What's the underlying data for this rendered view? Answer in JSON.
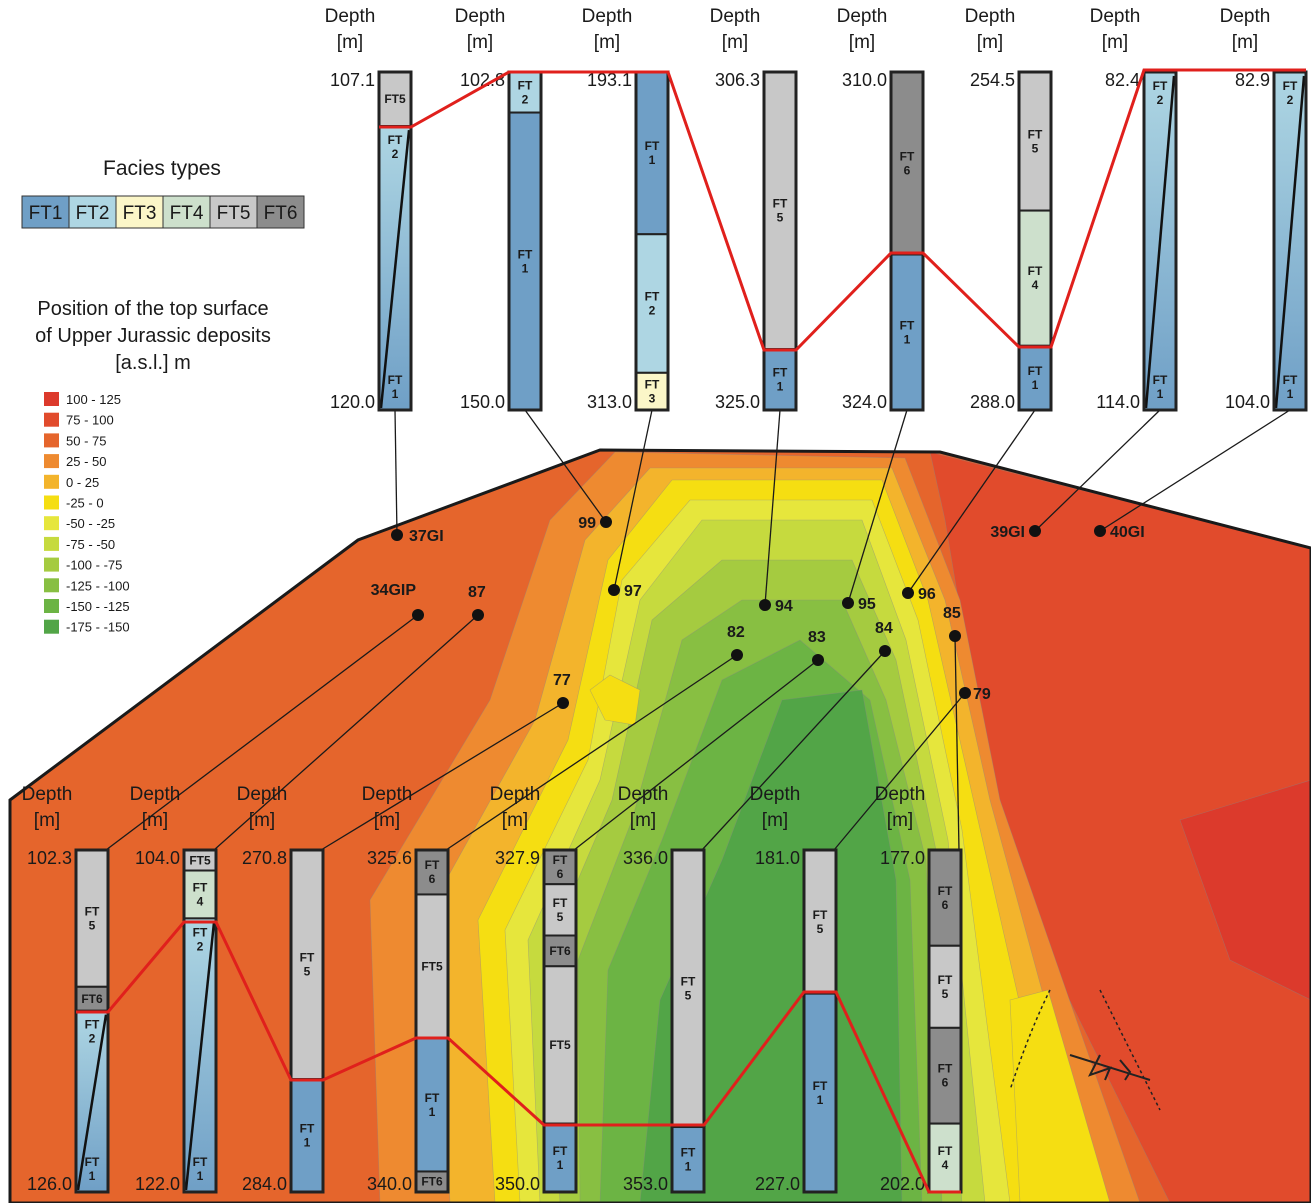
{
  "depth_header": [
    "Depth",
    "[m]"
  ],
  "facies_legend": {
    "title": "Facies types",
    "items": [
      {
        "label": "FT1",
        "color": "#6f9fc6"
      },
      {
        "label": "FT2",
        "color": "#aed6e3"
      },
      {
        "label": "FT3",
        "color": "#fbf6c8"
      },
      {
        "label": "FT4",
        "color": "#cde0cc"
      },
      {
        "label": "FT5",
        "color": "#c8c8c8"
      },
      {
        "label": "FT6",
        "color": "#8c8c8c"
      }
    ]
  },
  "surface_legend": {
    "title": [
      "Position of the top surface",
      "of Upper Jurassic deposits",
      "[a.s.l.] m"
    ],
    "items": [
      {
        "label": "100 - 125",
        "color": "#dc3a2c"
      },
      {
        "label": "75 - 100",
        "color": "#e14b2c"
      },
      {
        "label": "50 - 75",
        "color": "#e5652c"
      },
      {
        "label": "25 - 50",
        "color": "#ee8a30"
      },
      {
        "label": "0 - 25",
        "color": "#f3b42c"
      },
      {
        "label": "-25 - 0",
        "color": "#f5de12"
      },
      {
        "label": "-50 - -25",
        "color": "#e6e63c"
      },
      {
        "label": "-75 - -50",
        "color": "#c6da3e"
      },
      {
        "label": "-100 - -75",
        "color": "#a5cb40"
      },
      {
        "label": "-125 - -100",
        "color": "#88bf42"
      },
      {
        "label": "-150 - -125",
        "color": "#6cb444"
      },
      {
        "label": "-175 - -150",
        "color": "#52a547"
      }
    ]
  },
  "wells": [
    "37GI",
    "99",
    "97",
    "94",
    "95",
    "96",
    "39GI",
    "40GI",
    "34GIP",
    "87",
    "77",
    "82",
    "83",
    "84",
    "79",
    "85"
  ],
  "columns_top": [
    {
      "top": "107.1",
      "bottom": "120.0",
      "segments": [
        {
          "labels": [
            [
              "FT5"
            ]
          ]
        },
        {
          "labels": [
            [
              "FT",
              "2"
            ],
            [
              "FT",
              "1"
            ]
          ]
        }
      ]
    },
    {
      "top": "102.8",
      "bottom": "150.0",
      "segments": [
        {
          "labels": [
            [
              "FT",
              "2"
            ]
          ]
        },
        {
          "labels": [
            [
              "FT",
              "1"
            ]
          ]
        }
      ]
    },
    {
      "top": "193.1",
      "bottom": "313.0",
      "segments": [
        {
          "labels": [
            [
              "FT",
              "1"
            ]
          ]
        },
        {
          "labels": [
            [
              "FT",
              "2"
            ]
          ]
        },
        {
          "labels": [
            [
              "FT",
              "3"
            ]
          ]
        }
      ]
    },
    {
      "top": "306.3",
      "bottom": "325.0",
      "segments": [
        {
          "labels": [
            [
              "FT",
              "5"
            ]
          ]
        },
        {
          "labels": [
            [
              "FT",
              "1"
            ]
          ]
        }
      ]
    },
    {
      "top": "310.0",
      "bottom": "324.0",
      "segments": [
        {
          "labels": [
            [
              "FT",
              "6"
            ]
          ]
        },
        {
          "labels": [
            [
              "FT",
              "1"
            ]
          ]
        }
      ]
    },
    {
      "top": "254.5",
      "bottom": "288.0",
      "segments": [
        {
          "labels": [
            [
              "FT",
              "5"
            ]
          ]
        },
        {
          "labels": [
            [
              "FT",
              "4"
            ]
          ]
        },
        {
          "labels": [
            [
              "FT",
              "1"
            ]
          ]
        }
      ]
    },
    {
      "top": "82.4",
      "bottom": "114.0",
      "segments": [
        {
          "labels": [
            [
              "FT",
              "2"
            ],
            [
              "FT",
              "1"
            ]
          ]
        }
      ]
    },
    {
      "top": "82.9",
      "bottom": "104.0",
      "segments": [
        {
          "labels": [
            [
              "FT",
              "2"
            ],
            [
              "FT",
              "1"
            ]
          ]
        }
      ]
    }
  ],
  "columns_bottom": [
    {
      "top": "102.3",
      "bottom": "126.0",
      "segments": [
        {
          "labels": [
            [
              "FT",
              "5"
            ]
          ]
        },
        {
          "labels": [
            [
              "FT6"
            ]
          ]
        },
        {
          "labels": [
            [
              "FT",
              "2"
            ],
            [
              "FT",
              "1"
            ]
          ]
        }
      ]
    },
    {
      "top": "104.0",
      "bottom": "122.0",
      "segments": [
        {
          "labels": [
            [
              "FT5"
            ]
          ]
        },
        {
          "labels": [
            [
              "FT",
              "4"
            ]
          ]
        },
        {
          "labels": [
            [
              "FT",
              "2"
            ],
            [
              "FT",
              "1"
            ]
          ]
        }
      ]
    },
    {
      "top": "270.8",
      "bottom": "284.0",
      "segments": [
        {
          "labels": [
            [
              "FT",
              "5"
            ]
          ]
        },
        {
          "labels": [
            [
              "FT",
              "1"
            ]
          ]
        }
      ]
    },
    {
      "top": "325.6",
      "bottom": "340.0",
      "segments": [
        {
          "labels": [
            [
              "FT",
              "6"
            ]
          ]
        },
        {
          "labels": [
            [
              "FT5"
            ]
          ]
        },
        {
          "labels": [
            [
              "FT",
              "1"
            ]
          ]
        },
        {
          "labels": [
            [
              "FT6"
            ]
          ]
        }
      ]
    },
    {
      "top": "327.9",
      "bottom": "350.0",
      "segments": [
        {
          "labels": [
            [
              "FT",
              "6"
            ]
          ]
        },
        {
          "labels": [
            [
              "FT",
              "5"
            ]
          ]
        },
        {
          "labels": [
            [
              "FT6"
            ]
          ]
        },
        {
          "labels": [
            [
              "FT5"
            ]
          ]
        },
        {
          "labels": [
            [
              "FT",
              "1"
            ]
          ]
        }
      ]
    },
    {
      "top": "336.0",
      "bottom": "353.0",
      "segments": [
        {
          "labels": [
            [
              "FT",
              "5"
            ]
          ]
        },
        {
          "labels": [
            [
              "FT",
              "1"
            ]
          ]
        }
      ]
    },
    {
      "top": "181.0",
      "bottom": "227.0",
      "segments": [
        {
          "labels": [
            [
              "FT",
              "5"
            ]
          ]
        },
        {
          "labels": [
            [
              "FT",
              "1"
            ]
          ]
        }
      ]
    },
    {
      "top": "177.0",
      "bottom": "202.0",
      "segments": [
        {
          "labels": [
            [
              "FT",
              "6"
            ]
          ]
        },
        {
          "labels": [
            [
              "FT",
              "5"
            ]
          ]
        },
        {
          "labels": [
            [
              "FT",
              "6"
            ]
          ]
        },
        {
          "labels": [
            [
              "FT",
              "4"
            ]
          ]
        }
      ]
    }
  ]
}
